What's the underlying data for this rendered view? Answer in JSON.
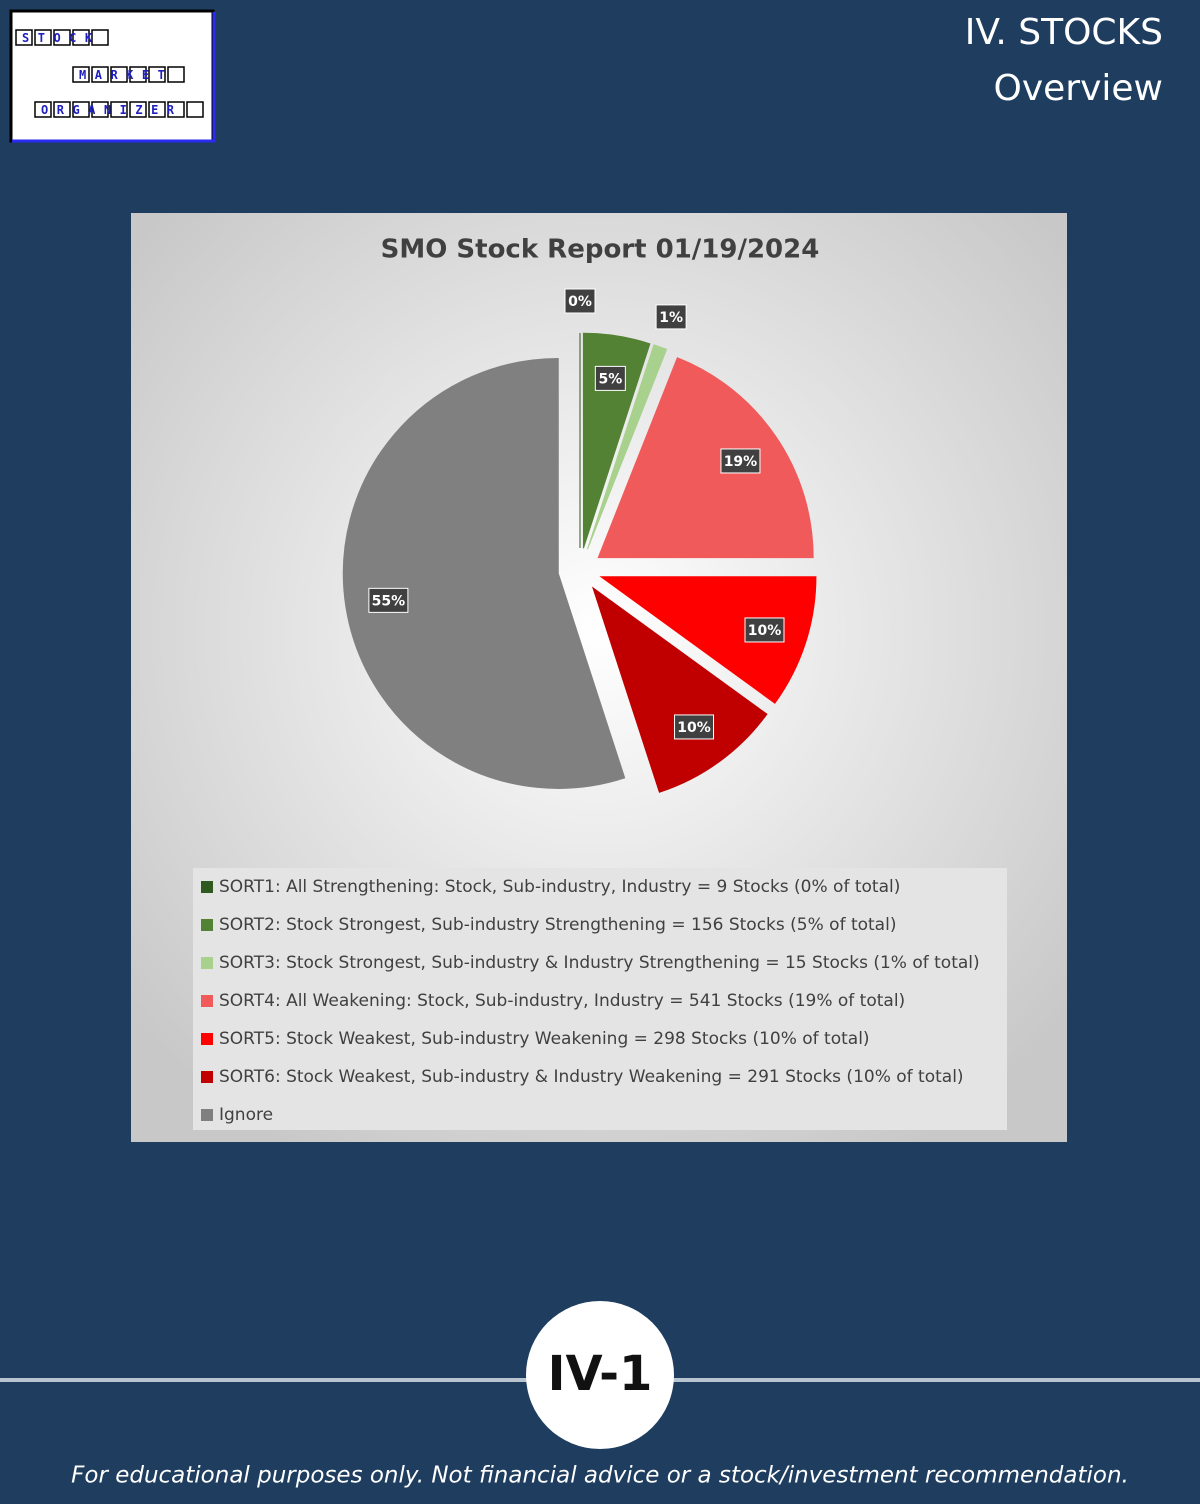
{
  "header": {
    "title": "IV. STOCKS",
    "subtitle": "Overview"
  },
  "logo": {
    "words": [
      "STOCK",
      "MARKET",
      "ORGANIZER"
    ]
  },
  "chart_data": {
    "type": "pie",
    "title": "SMO Stock Report 01/19/2024",
    "categories": [
      "SORT1: All Strengthening: Stock, Sub-industry, Industry = 9 Stocks (0% of total)",
      "SORT2: Stock Strongest, Sub-industry Strengthening = 156 Stocks (5% of total)",
      "SORT3: Stock Strongest, Sub-industry & Industry Strengthening = 15 Stocks (1% of total)",
      "SORT4: All Weakening: Stock, Sub-industry, Industry = 541 Stocks (19% of total)",
      "SORT5: Stock Weakest, Sub-industry Weakening = 298 Stocks (10% of total)",
      "SORT6: Stock Weakest, Sub-industry & Industry Weakening = 291 Stocks (10% of total)",
      "Ignore"
    ],
    "values": [
      0,
      5,
      1,
      19,
      10,
      10,
      55
    ],
    "value_labels": [
      "0%",
      "5%",
      "1%",
      "19%",
      "10%",
      "10%",
      "55%"
    ],
    "colors": [
      "#2f5a1f",
      "#548235",
      "#a9d18e",
      "#f05a5b",
      "#ff0000",
      "#c00000",
      "#808080"
    ],
    "legend": "bottom"
  },
  "footer": {
    "page": "IV-1",
    "disclaimer": "For educational purposes only. Not financial advice or a stock/investment recommendation."
  }
}
